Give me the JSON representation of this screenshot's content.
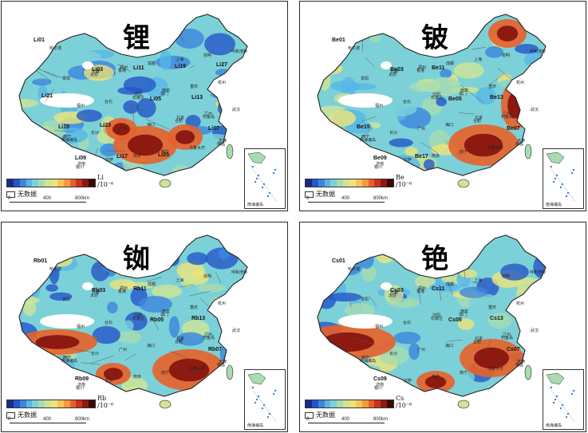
{
  "panels": [
    {
      "id": "li",
      "title": "锂",
      "unit_symbol": "Li",
      "unit_scale": "/10⁻⁶",
      "nodata_label": "无数据",
      "scale_ticks": [
        "0",
        "400",
        "800km"
      ],
      "hotspots": "south",
      "codes": [
        "Li01",
        "Li03",
        "Li05",
        "Li07",
        "Li09",
        "Li11",
        "Li13",
        "Li15",
        "Li17",
        "Li19",
        "Li21",
        "Li23",
        "Li25",
        "Li27"
      ]
    },
    {
      "id": "be",
      "title": "铍",
      "unit_symbol": "Be",
      "unit_scale": "/10⁻⁶",
      "nodata_label": "无数据",
      "scale_ticks": [
        "0",
        "400",
        "800km"
      ],
      "hotspots": "southeast",
      "codes": [
        "Be01",
        "Be03",
        "Be05",
        "Be07",
        "Be09",
        "Be11",
        "Be13",
        "Be15",
        "Be17"
      ]
    },
    {
      "id": "rb",
      "title": "铷",
      "unit_symbol": "Rb",
      "unit_scale": "/10⁻⁶",
      "nodata_label": "无数据",
      "scale_ticks": [
        "0",
        "400",
        "800km"
      ],
      "hotspots": "southeast-tibet",
      "codes": [
        "Rb01",
        "Rb03",
        "Rb05",
        "Rb07",
        "Rb09",
        "Rb11",
        "Rb13"
      ]
    },
    {
      "id": "cs",
      "title": "铯",
      "unit_symbol": "Cs",
      "unit_scale": "/10⁻⁶",
      "nodata_label": "无数据",
      "scale_ticks": [
        "0",
        "400",
        "800km"
      ],
      "hotspots": "tibet",
      "codes": [
        "Cs01",
        "Cs03",
        "Cs05",
        "Cs07",
        "Cs09",
        "Cs11",
        "Cs13"
      ]
    }
  ],
  "inset_label": "南海诸岛",
  "place_labels": [
    "哈尔滨",
    "长春",
    "沈阳",
    "北京",
    "天津",
    "济南",
    "郑州",
    "西安",
    "兰州",
    "西宁",
    "拉萨",
    "成都",
    "重庆",
    "武汉",
    "长沙",
    "南京",
    "上海",
    "杭州",
    "福州",
    "广州",
    "南宁",
    "昆明",
    "贵阳",
    "台北",
    "海口",
    "乌鲁木齐",
    "呼和浩特",
    "太原",
    "石家庄",
    "合肥",
    "南昌",
    "银川",
    "香港",
    "澳门",
    "钓鱼岛",
    "南海诸岛"
  ],
  "colors": [
    "#1a2a8c",
    "#2456c8",
    "#3b86dd",
    "#58b6e6",
    "#7cd1d8",
    "#a8dcb0",
    "#cfe594",
    "#eee37a",
    "#f6c45a",
    "#f39a3c",
    "#e8602a",
    "#c8321e",
    "#8c1a10",
    "#3a0a06"
  ]
}
